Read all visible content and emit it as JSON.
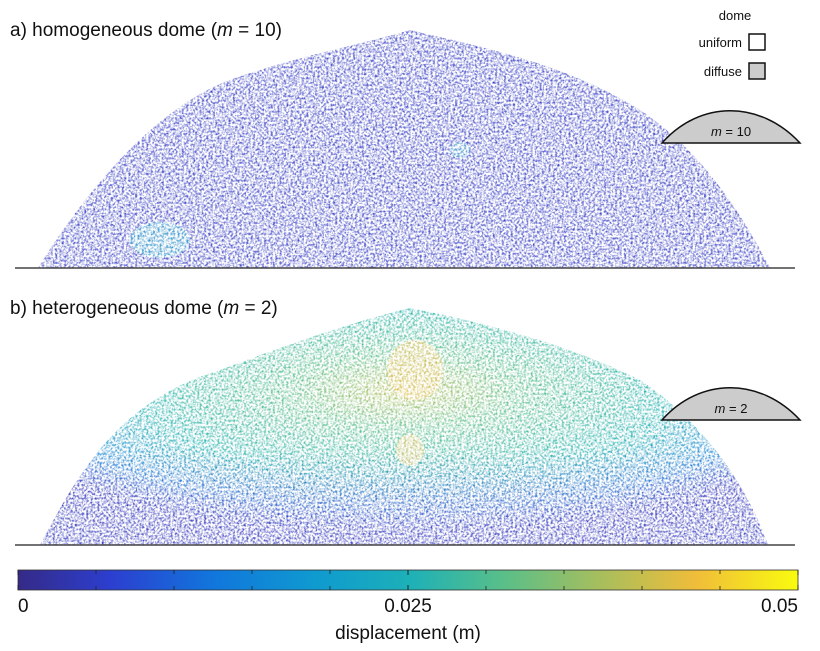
{
  "panels": [
    {
      "label": "a) homogeneous dome (",
      "param": "m",
      "param_value": " = 10)",
      "inset_param": "m",
      "inset_value": " = 10"
    },
    {
      "label": "b) heterogeneous dome (",
      "param": "m",
      "param_value": " = 2)",
      "inset_param": "m",
      "inset_value": " = 2"
    }
  ],
  "legend": {
    "title": "dome",
    "items": [
      "uniform",
      "diffuse"
    ]
  },
  "colorbar": {
    "label": "displacement (m)",
    "lim": [
      0,
      0.05
    ],
    "ticks": [
      0,
      0.025,
      0.05
    ],
    "minor_ticks": [
      0.005,
      0.01,
      0.015,
      0.02,
      0.03,
      0.035,
      0.04,
      0.045
    ]
  }
}
